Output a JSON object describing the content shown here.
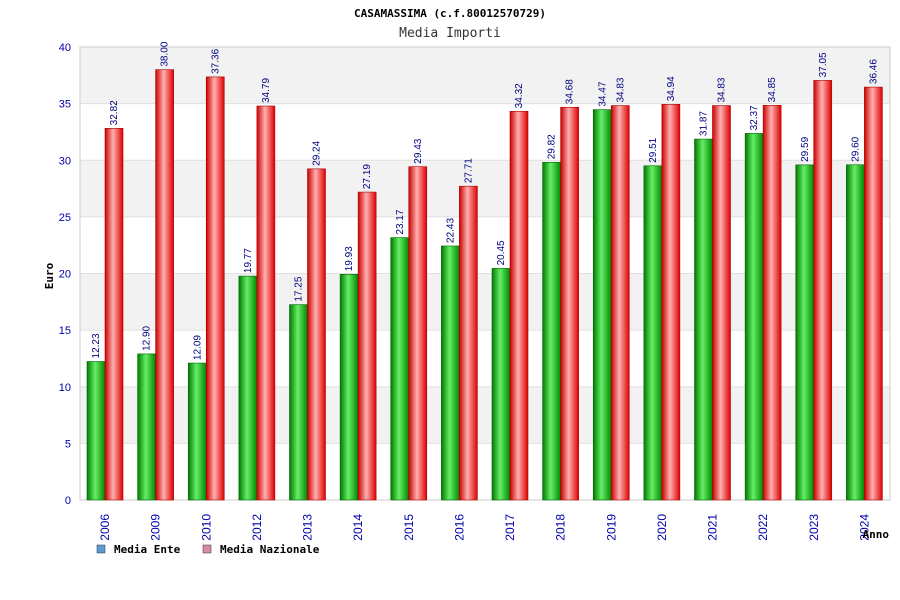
{
  "chart_data": {
    "type": "bar",
    "title": "CASAMASSIMA (c.f.80012570729)",
    "subtitle": "Media Importi",
    "xlabel": "Anno",
    "ylabel": "Euro",
    "ylim": [
      0,
      40
    ],
    "yticks": [
      "0",
      "5",
      "10",
      "15",
      "20",
      "25",
      "30",
      "35",
      "40"
    ],
    "categories": [
      "2006",
      "2009",
      "2010",
      "2012",
      "2013",
      "2014",
      "2015",
      "2016",
      "2017",
      "2018",
      "2019",
      "2020",
      "2021",
      "2022",
      "2023",
      "2024"
    ],
    "series": [
      {
        "name": "Media Ente",
        "color": "#00aa00",
        "legend_color": "#5b9bd5",
        "values": [
          12.23,
          12.9,
          12.09,
          19.77,
          17.25,
          19.93,
          23.17,
          22.43,
          20.45,
          29.82,
          34.47,
          29.51,
          31.87,
          32.37,
          29.59,
          29.6
        ],
        "labels": [
          "12.23",
          "12.90",
          "12.09",
          "19.77",
          "17.25",
          "19.93",
          "23.17",
          "22.43",
          "20.45",
          "29.82",
          "34.47",
          "29.51",
          "31.87",
          "32.37",
          "29.59",
          "29.60"
        ]
      },
      {
        "name": "Media Nazionale",
        "color": "#dd0000",
        "legend_color": "#d88aa8",
        "values": [
          32.82,
          38.0,
          37.36,
          34.79,
          29.24,
          27.19,
          29.43,
          27.71,
          34.32,
          34.68,
          34.83,
          34.94,
          34.83,
          34.85,
          37.05,
          36.46
        ],
        "labels": [
          "32.82",
          "38.00",
          "37.36",
          "34.79",
          "29.24",
          "27.19",
          "29.43",
          "27.71",
          "34.32",
          "34.68",
          "34.83",
          "34.94",
          "34.83",
          "34.85",
          "37.05",
          "36.46"
        ]
      }
    ],
    "grid": true,
    "legend": "bottom-left"
  }
}
